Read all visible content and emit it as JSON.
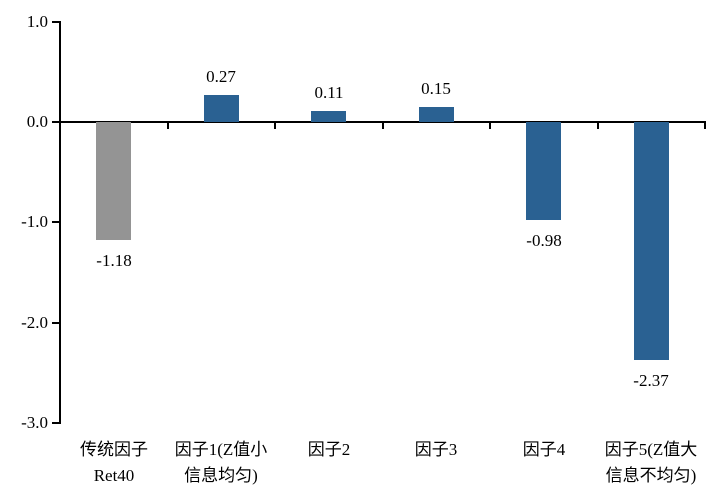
{
  "chart_data": {
    "type": "bar",
    "title": "",
    "xlabel": "",
    "ylabel": "",
    "grid": false,
    "legend": "none",
    "background": "#FFFFFF",
    "axis_color": "#000000",
    "ylim": [
      -3.0,
      1.0
    ],
    "y_ticks": {
      "labels": [
        "1.0",
        "0.0",
        "-1.0",
        "-2.0",
        "-3.0"
      ],
      "values": [
        1.0,
        0.0,
        -1.0,
        -2.0,
        -3.0
      ]
    },
    "categories": [
      "传统因子 Ret40",
      "因子1(Z值小 信息均匀)",
      "因子2",
      "因子3",
      "因子4",
      "因子5(Z值大 信息不均匀)"
    ],
    "category_lines": [
      [
        "传统因子",
        "Ret40"
      ],
      [
        "因子1(Z值小",
        "信息均匀)"
      ],
      [
        "因子2"
      ],
      [
        "因子3"
      ],
      [
        "因子4"
      ],
      [
        "因子5(Z值大",
        "信息不均匀)"
      ]
    ],
    "values": [
      -1.18,
      0.27,
      0.11,
      0.15,
      -0.98,
      -2.37
    ],
    "value_labels": [
      "-1.18",
      "0.27",
      "0.11",
      "0.15",
      "-0.98",
      "-2.37"
    ],
    "bar_colors": [
      "#949494",
      "#2A6192",
      "#2A6192",
      "#2A6192",
      "#2A6192",
      "#2A6192"
    ],
    "series_colors": {
      "gray_baseline": "#949494",
      "blue_factor": "#2A6192"
    }
  }
}
